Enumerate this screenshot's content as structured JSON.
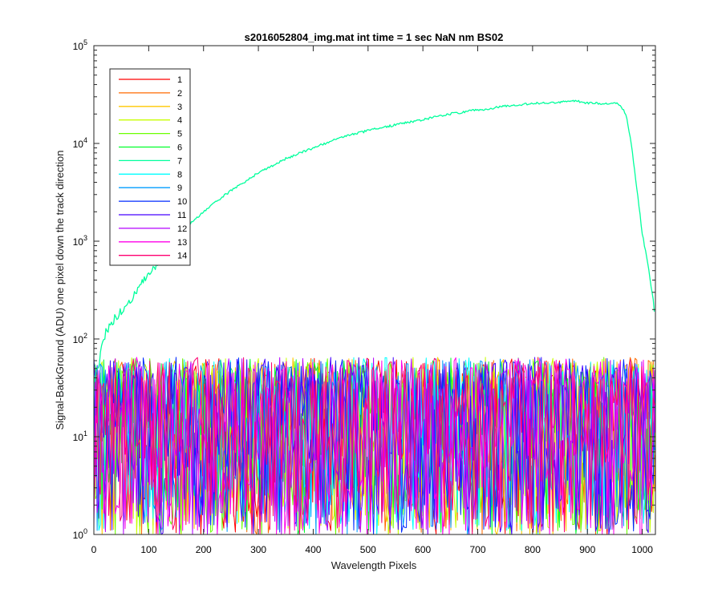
{
  "chart_data": {
    "type": "line",
    "title": "s2016052804_img.mat int time = 1 sec  NaN nm BS02",
    "xlabel": "Wavelength Pixels",
    "ylabel": "Signal-BackGround (ADU) one pixel down the track direction",
    "xlim": [
      0,
      1024
    ],
    "ylim": [
      1,
      100000
    ],
    "yscale": "log",
    "xticks": [
      "0",
      "100",
      "200",
      "300",
      "400",
      "500",
      "600",
      "700",
      "800",
      "900",
      "1000"
    ],
    "xtick_values": [
      0,
      100,
      200,
      300,
      400,
      500,
      600,
      700,
      800,
      900,
      1000
    ],
    "yticks": [
      {
        "base": "10",
        "exp": "0",
        "value": 1
      },
      {
        "base": "10",
        "exp": "1",
        "value": 10
      },
      {
        "base": "10",
        "exp": "2",
        "value": 100
      },
      {
        "base": "10",
        "exp": "3",
        "value": 1000
      },
      {
        "base": "10",
        "exp": "4",
        "value": 10000
      },
      {
        "base": "10",
        "exp": "5",
        "value": 100000
      }
    ],
    "grid": false,
    "legend_position": "top-left",
    "series": [
      {
        "name": "1",
        "color": "#ff0000",
        "profile": "noise"
      },
      {
        "name": "2",
        "color": "#ff6a00",
        "profile": "noise"
      },
      {
        "name": "3",
        "color": "#ffc800",
        "profile": "noise"
      },
      {
        "name": "4",
        "color": "#c8ff00",
        "profile": "noise"
      },
      {
        "name": "5",
        "color": "#6aff00",
        "profile": "noise"
      },
      {
        "name": "6",
        "color": "#00ff2b",
        "profile": "noise"
      },
      {
        "name": "7",
        "color": "#00ff9c",
        "profile": "signal",
        "x": [
          0,
          10,
          20,
          30,
          50,
          75,
          100,
          125,
          150,
          175,
          200,
          250,
          300,
          350,
          400,
          450,
          500,
          550,
          600,
          650,
          700,
          750,
          800,
          850,
          880,
          900,
          930,
          950,
          960,
          970,
          980,
          990,
          1000,
          1010,
          1020,
          1023
        ],
        "y": [
          35,
          60,
          110,
          140,
          190,
          290,
          450,
          700,
          1100,
          1500,
          2000,
          3300,
          5000,
          7000,
          9000,
          11500,
          13500,
          15500,
          17500,
          20000,
          22000,
          24000,
          25500,
          26500,
          27000,
          26000,
          25500,
          26000,
          25000,
          20000,
          10000,
          3500,
          1200,
          600,
          250,
          160
        ]
      },
      {
        "name": "8",
        "color": "#00ffff",
        "profile": "noise"
      },
      {
        "name": "9",
        "color": "#009cff",
        "profile": "noise"
      },
      {
        "name": "10",
        "color": "#002bff",
        "profile": "noise"
      },
      {
        "name": "11",
        "color": "#4400ff",
        "profile": "noise"
      },
      {
        "name": "12",
        "color": "#b400ff",
        "profile": "noise"
      },
      {
        "name": "13",
        "color": "#ff00ea",
        "profile": "noise"
      },
      {
        "name": "14",
        "color": "#ff0070",
        "profile": "noise"
      }
    ]
  }
}
